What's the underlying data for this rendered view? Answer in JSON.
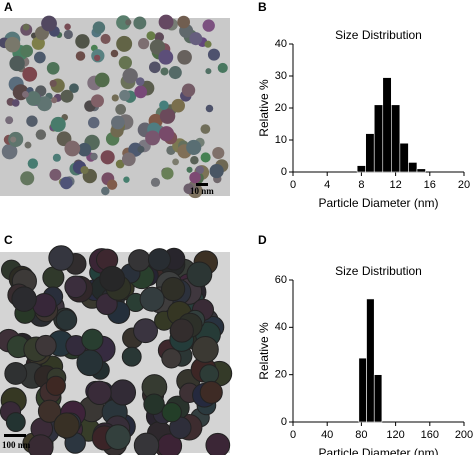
{
  "figure": {
    "panel_labels": [
      "A",
      "B",
      "C",
      "D"
    ],
    "scale_bars": [
      "10 nm",
      "100 nm"
    ]
  },
  "chart_data": [
    {
      "type": "histogram",
      "title": "Size Distribution",
      "x_label": "Particle Diameter (nm)",
      "y_label": "Relative %",
      "bins": [
        7.5,
        8.5,
        9.5,
        10.5,
        11.5,
        12.5,
        13.5,
        14.5,
        15.5
      ],
      "values": [
        2,
        12,
        21,
        29.5,
        21,
        9,
        3,
        1
      ],
      "color": "#000000",
      "xlim": [
        0,
        20
      ],
      "xticks": [
        0,
        4,
        8,
        12,
        16,
        20
      ],
      "ylim": [
        0,
        40
      ],
      "yticks": [
        0,
        10,
        20,
        30,
        40
      ]
    },
    {
      "type": "histogram",
      "title": "Size Distribution",
      "x_label": "Particle Diameter (nm)",
      "y_label": "Relative %",
      "bins": [
        77,
        86,
        95,
        104
      ],
      "values": [
        27,
        52,
        20
      ],
      "color": "#000000",
      "xlim": [
        0,
        200
      ],
      "xticks": [
        0,
        40,
        80,
        120,
        160,
        200
      ],
      "ylim": [
        0,
        60
      ],
      "yticks": [
        0,
        20,
        40,
        60
      ]
    }
  ]
}
